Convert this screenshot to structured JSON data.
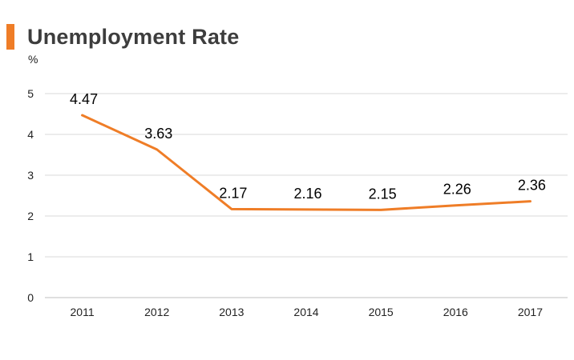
{
  "title": "Unemployment Rate",
  "colors": {
    "accent": "#ef7d27",
    "line": "#ef7d27",
    "grid": "#d9d9d9",
    "axis": "#bfbfbf"
  },
  "chart_data": {
    "type": "line",
    "title": "Unemployment Rate",
    "ylabel": "%",
    "xlabel": "",
    "categories": [
      "2011",
      "2012",
      "2013",
      "2014",
      "2015",
      "2016",
      "2017"
    ],
    "series": [
      {
        "values": [
          4.47,
          3.63,
          2.17,
          2.16,
          2.15,
          2.26,
          2.36
        ],
        "labels": [
          "4.47",
          "3.63",
          "2.17",
          "2.16",
          "2.15",
          "2.26",
          "2.36"
        ]
      }
    ],
    "ylim": [
      0,
      5
    ],
    "yticks": [
      0,
      1,
      2,
      3,
      4,
      5
    ],
    "grid": true,
    "legend": "none"
  }
}
